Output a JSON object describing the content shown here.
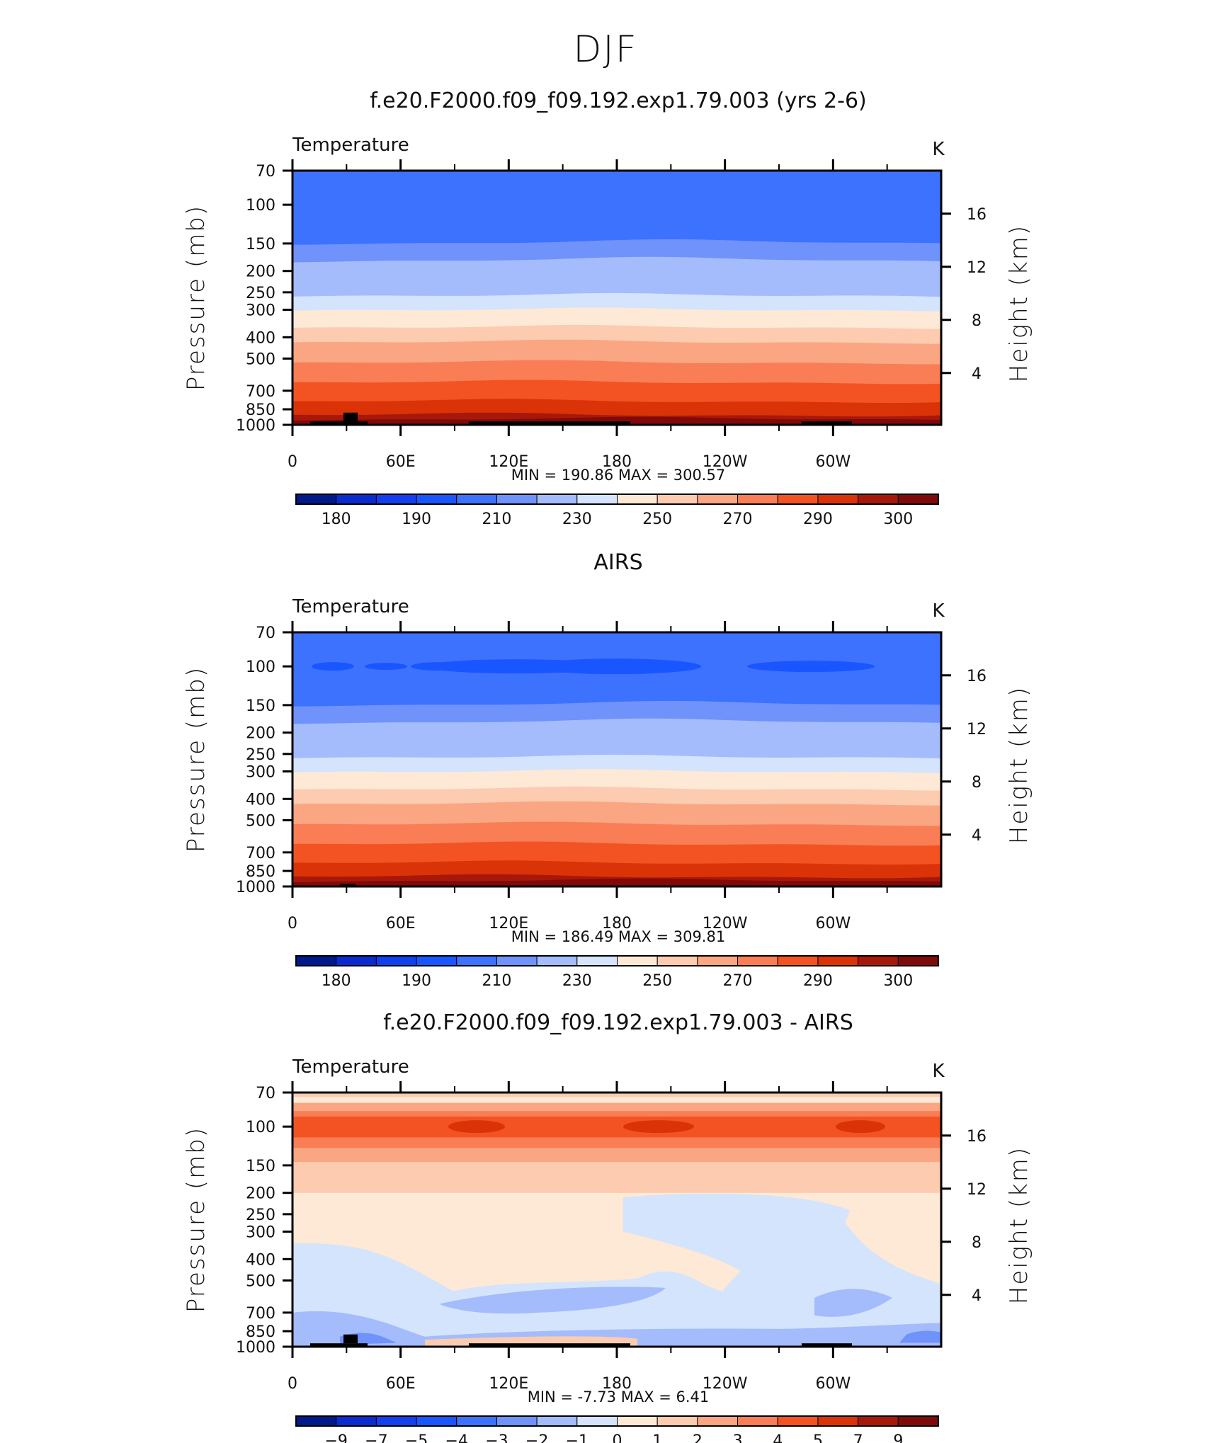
{
  "page": {
    "title": "DJF"
  },
  "colorbar_colors": {
    "temperature": [
      "#001a8c",
      "#0a2ccf",
      "#1240ee",
      "#1a56ff",
      "#3d72ff",
      "#6f93fb",
      "#a4bcfb",
      "#d3e4fc",
      "#fde9d6",
      "#fccbb0",
      "#fba683",
      "#f97e55",
      "#f35322",
      "#da3308",
      "#a8180a",
      "#7f0a0a"
    ],
    "difference": [
      "#001a8c",
      "#0a2ccf",
      "#1240ee",
      "#1a56ff",
      "#3d72ff",
      "#6f93fb",
      "#a4bcfb",
      "#d3e4fc",
      "#fde9d6",
      "#fccbb0",
      "#fba683",
      "#f97e55",
      "#f35322",
      "#da3308",
      "#a8180a",
      "#7f0a0a"
    ]
  },
  "chart_data": [
    {
      "type": "heatmap",
      "title": "f.e20.F2000.f09_f09.192.exp1.79.003 (yrs 2-6)",
      "left_string": "Temperature",
      "right_string": "K",
      "ylabel": "Pressure (mb)",
      "y2label": "Height (km)",
      "xticks": [
        "0",
        "60E",
        "120E",
        "180",
        "120W",
        "60W"
      ],
      "xlim": [
        0,
        360
      ],
      "yticks": [
        "70",
        "100",
        "150",
        "200",
        "250",
        "300",
        "400",
        "500",
        "700",
        "850",
        "1000"
      ],
      "y_values": [
        70,
        100,
        150,
        200,
        250,
        300,
        400,
        500,
        700,
        850,
        1000
      ],
      "ylim": [
        1000,
        70
      ],
      "y2ticks": [
        "16",
        "12",
        "8",
        "4"
      ],
      "y2_values": [
        16,
        12,
        8,
        4
      ],
      "min_label": "MIN  =  190.86   MAX  =  300.57",
      "colorbar_labels": [
        "180",
        "190",
        "210",
        "230",
        "250",
        "270",
        "290",
        "300"
      ],
      "land": "black"
    },
    {
      "type": "heatmap",
      "title": "AIRS",
      "left_string": "Temperature",
      "right_string": "K",
      "ylabel": "Pressure (mb)",
      "y2label": "Height (km)",
      "xticks": [
        "0",
        "60E",
        "120E",
        "180",
        "120W",
        "60W"
      ],
      "xlim": [
        0,
        360
      ],
      "yticks": [
        "70",
        "100",
        "150",
        "200",
        "250",
        "300",
        "400",
        "500",
        "700",
        "850",
        "1000"
      ],
      "y_values": [
        70,
        100,
        150,
        200,
        250,
        300,
        400,
        500,
        700,
        850,
        1000
      ],
      "ylim": [
        1000,
        70
      ],
      "y2ticks": [
        "16",
        "12",
        "8",
        "4"
      ],
      "y2_values": [
        16,
        12,
        8,
        4
      ],
      "min_label": "MIN  =  186.49   MAX  =  309.81",
      "colorbar_labels": [
        "180",
        "190",
        "210",
        "230",
        "250",
        "270",
        "290",
        "300"
      ],
      "land": "black"
    },
    {
      "type": "heatmap",
      "title": "f.e20.F2000.f09_f09.192.exp1.79.003 - AIRS",
      "left_string": "Temperature",
      "right_string": "K",
      "ylabel": "Pressure (mb)",
      "y2label": "Height (km)",
      "xticks": [
        "0",
        "60E",
        "120E",
        "180",
        "120W",
        "60W"
      ],
      "xlim": [
        0,
        360
      ],
      "yticks": [
        "70",
        "100",
        "150",
        "200",
        "250",
        "300",
        "400",
        "500",
        "700",
        "850",
        "1000"
      ],
      "y_values": [
        70,
        100,
        150,
        200,
        250,
        300,
        400,
        500,
        700,
        850,
        1000
      ],
      "ylim": [
        1000,
        70
      ],
      "y2ticks": [
        "16",
        "12",
        "8",
        "4"
      ],
      "y2_values": [
        16,
        12,
        8,
        4
      ],
      "min_label": "MIN  =    -7.73   MAX  =     6.41",
      "colorbar_labels": [
        "−9",
        "−7",
        "−5",
        "−4",
        "−3",
        "−2",
        "−1",
        "0",
        "1",
        "2",
        "3",
        "4",
        "5",
        "7",
        "9"
      ],
      "land": "black"
    }
  ]
}
